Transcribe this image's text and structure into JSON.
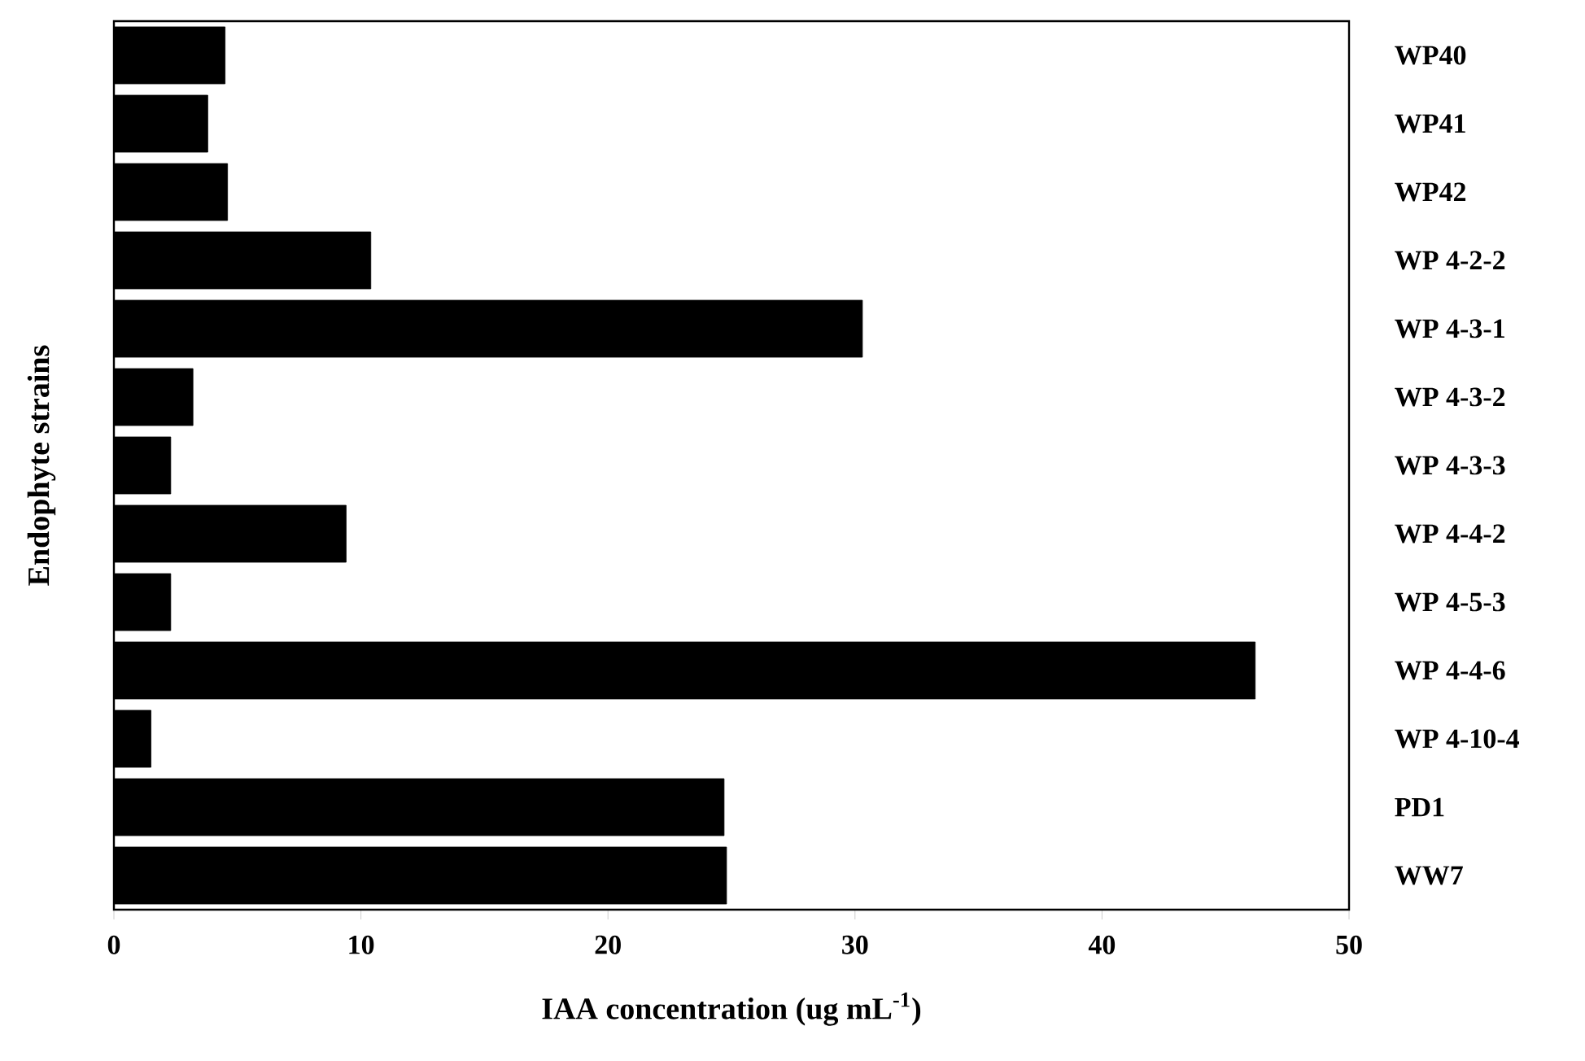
{
  "chart_data": {
    "type": "bar",
    "orientation": "horizontal",
    "xlabel": "IAA concentration (ug mL$^{-1}$)",
    "ylabel": "Endophyte strains",
    "categories": [
      "WP40",
      "WP41",
      "WP42",
      "WP 4-2-2",
      "WP 4-3-1",
      "WP 4-3-2",
      "WP 4-3-3",
      "WP 4-4-2",
      "WP 4-5-3",
      "WP 4-4-6",
      "WP 4-10-4",
      "PD1",
      "WW7"
    ],
    "values": [
      4.5,
      3.8,
      4.6,
      10.4,
      30.3,
      3.2,
      2.3,
      9.4,
      2.3,
      46.2,
      1.5,
      24.7,
      24.8
    ],
    "color": "#000000",
    "xlim": [
      0,
      50
    ],
    "xticks": [
      0,
      10,
      20,
      30,
      40,
      50
    ],
    "grid": false
  }
}
